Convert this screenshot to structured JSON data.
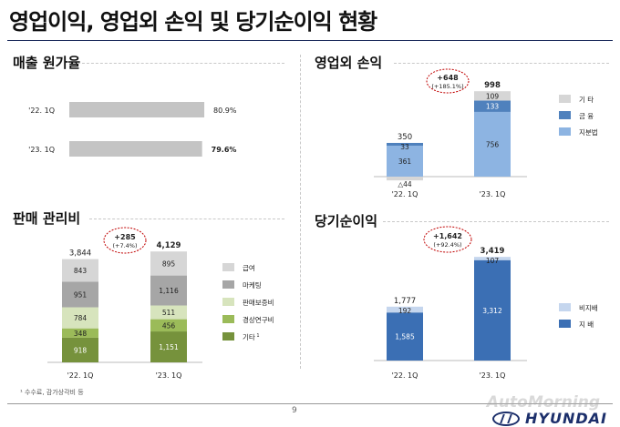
{
  "page": {
    "title": "영업이익, 영업외 손익 및 당기순이익 현황",
    "footnote": "¹ 수수료, 감가상각비 등",
    "page_number": "9",
    "logo_text": "HYUNDAI",
    "watermark": "AutoMorning"
  },
  "colors": {
    "gray_bar": "#c4c4c4",
    "gray_light": "#d6d6d6",
    "gray_mid": "#a6a6a6",
    "green_light": "#d7e4bd",
    "green_mid": "#9bbb59",
    "green_dark": "#76923c",
    "blue_light": "#c5d6ee",
    "blue_mid": "#8db4e2",
    "blue_dark": "#4f81bd",
    "blue_deep": "#3b6fb4",
    "callout_red": "#c00000",
    "title_rule": "#1a2a5a"
  },
  "chart_data": [
    {
      "type": "bar",
      "orientation": "horizontal",
      "title": "매출 원가율",
      "categories": [
        "'22. 1Q",
        "'23. 1Q"
      ],
      "values": [
        80.9,
        79.6
      ],
      "labels": [
        "80.9%",
        "79.6%"
      ],
      "xlim": [
        0,
        100
      ]
    },
    {
      "type": "bar",
      "stacked": true,
      "title": "영업외 손익",
      "categories": [
        "'22. 1Q",
        "'23. 1Q"
      ],
      "series": [
        {
          "name": "지분법",
          "values": [
            361,
            756
          ],
          "labels": [
            "361",
            "756"
          ],
          "color": "#8db4e2"
        },
        {
          "name": "금 융",
          "values": [
            33,
            133
          ],
          "labels": [
            "33",
            "133"
          ],
          "color": "#4f81bd"
        },
        {
          "name": "기 타",
          "values": [
            -44,
            109
          ],
          "labels": [
            "△44",
            "109"
          ],
          "color": "#d6d6d6"
        }
      ],
      "totals": [
        "350",
        "998"
      ],
      "total_values": [
        350,
        998
      ],
      "ylim": [
        -60,
        1050
      ],
      "callout": {
        "main": "+648",
        "sub": "(+185.1%)"
      },
      "legend": "right"
    },
    {
      "type": "bar",
      "stacked": true,
      "title": "판매 관리비",
      "categories": [
        "'22. 1Q",
        "'23. 1Q"
      ],
      "series": [
        {
          "name": "기타",
          "values": [
            918,
            1151
          ],
          "labels": [
            "918",
            "1,151"
          ],
          "color": "#76923c"
        },
        {
          "name": "경상연구비",
          "values": [
            348,
            456
          ],
          "labels": [
            "348",
            "456"
          ],
          "color": "#9bbb59"
        },
        {
          "name": "판매보증비",
          "values": [
            784,
            511
          ],
          "labels": [
            "784",
            "511"
          ],
          "color": "#d7e4bd"
        },
        {
          "name": "마케팅",
          "values": [
            951,
            1116
          ],
          "labels": [
            "951",
            "1,116"
          ],
          "color": "#a6a6a6"
        },
        {
          "name": "급여",
          "values": [
            843,
            895
          ],
          "labels": [
            "843",
            "895"
          ],
          "color": "#d6d6d6"
        }
      ],
      "legend_sup": "1",
      "totals": [
        "3,844",
        "4,129"
      ],
      "total_values": [
        3844,
        4129
      ],
      "ylim": [
        0,
        4300
      ],
      "callout": {
        "main": "+285",
        "sub": "(+7.4%)"
      },
      "legend": "right"
    },
    {
      "type": "bar",
      "stacked": true,
      "title": "당기순이익",
      "categories": [
        "'22. 1Q",
        "'23. 1Q"
      ],
      "series": [
        {
          "name": "지 배",
          "values": [
            1585,
            3312
          ],
          "labels": [
            "1,585",
            "3,312"
          ],
          "color": "#3b6fb4"
        },
        {
          "name": "비지배",
          "values": [
            192,
            107
          ],
          "labels": [
            "192",
            "107"
          ],
          "color": "#c5d6ee"
        }
      ],
      "totals": [
        "1,777",
        "3,419"
      ],
      "total_values": [
        1777,
        3419
      ],
      "ylim": [
        0,
        3600
      ],
      "callout": {
        "main": "+1,642",
        "sub": "(+92.4%)"
      },
      "legend": "right"
    }
  ]
}
